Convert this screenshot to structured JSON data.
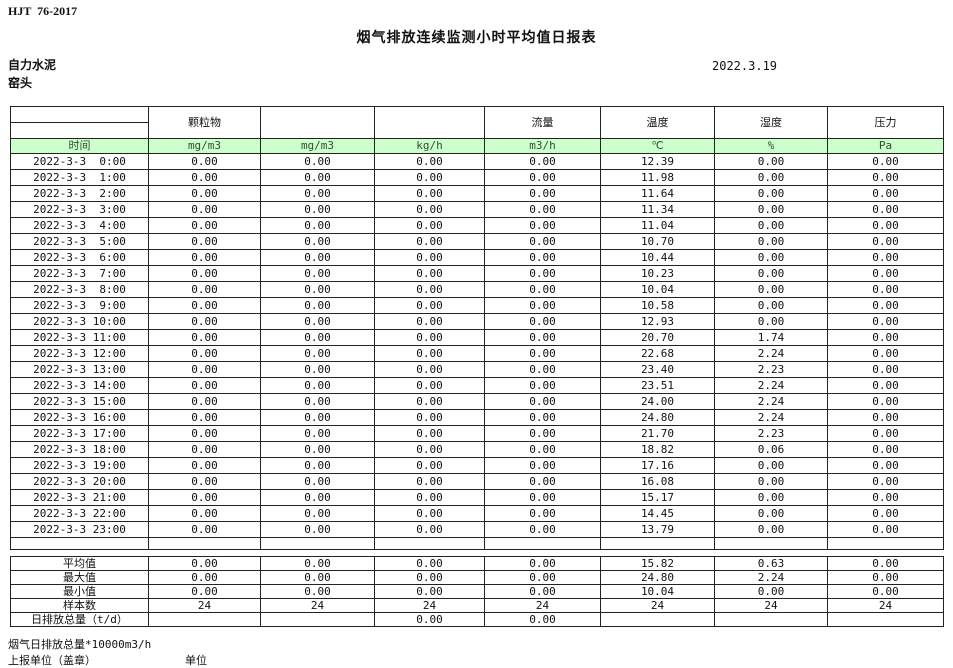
{
  "page": {
    "standard": "HJT  76-2017",
    "title": "烟气排放连续监测小时平均值日报表",
    "date": "2022.3.19",
    "company": "自力水泥",
    "station": "窑头"
  },
  "table": {
    "group_headers": [
      "",
      "颗粒物",
      "",
      "",
      "流量",
      "温度",
      "湿度",
      "压力"
    ],
    "unit_row": [
      "时间",
      "mg/m3",
      "mg/m3",
      "kg/h",
      "m3/h",
      "℃",
      "%",
      "Pa"
    ],
    "rows": [
      {
        "time": "2022-3-3  0:00",
        "values": [
          "0.00",
          "0.00",
          "0.00",
          "0.00",
          "12.39",
          "0.00",
          "0.00"
        ]
      },
      {
        "time": "2022-3-3  1:00",
        "values": [
          "0.00",
          "0.00",
          "0.00",
          "0.00",
          "11.98",
          "0.00",
          "0.00"
        ]
      },
      {
        "time": "2022-3-3  2:00",
        "values": [
          "0.00",
          "0.00",
          "0.00",
          "0.00",
          "11.64",
          "0.00",
          "0.00"
        ]
      },
      {
        "time": "2022-3-3  3:00",
        "values": [
          "0.00",
          "0.00",
          "0.00",
          "0.00",
          "11.34",
          "0.00",
          "0.00"
        ]
      },
      {
        "time": "2022-3-3  4:00",
        "values": [
          "0.00",
          "0.00",
          "0.00",
          "0.00",
          "11.04",
          "0.00",
          "0.00"
        ]
      },
      {
        "time": "2022-3-3  5:00",
        "values": [
          "0.00",
          "0.00",
          "0.00",
          "0.00",
          "10.70",
          "0.00",
          "0.00"
        ]
      },
      {
        "time": "2022-3-3  6:00",
        "values": [
          "0.00",
          "0.00",
          "0.00",
          "0.00",
          "10.44",
          "0.00",
          "0.00"
        ]
      },
      {
        "time": "2022-3-3  7:00",
        "values": [
          "0.00",
          "0.00",
          "0.00",
          "0.00",
          "10.23",
          "0.00",
          "0.00"
        ]
      },
      {
        "time": "2022-3-3  8:00",
        "values": [
          "0.00",
          "0.00",
          "0.00",
          "0.00",
          "10.04",
          "0.00",
          "0.00"
        ]
      },
      {
        "time": "2022-3-3  9:00",
        "values": [
          "0.00",
          "0.00",
          "0.00",
          "0.00",
          "10.58",
          "0.00",
          "0.00"
        ]
      },
      {
        "time": "2022-3-3 10:00",
        "values": [
          "0.00",
          "0.00",
          "0.00",
          "0.00",
          "12.93",
          "0.00",
          "0.00"
        ]
      },
      {
        "time": "2022-3-3 11:00",
        "values": [
          "0.00",
          "0.00",
          "0.00",
          "0.00",
          "20.70",
          "1.74",
          "0.00"
        ]
      },
      {
        "time": "2022-3-3 12:00",
        "values": [
          "0.00",
          "0.00",
          "0.00",
          "0.00",
          "22.68",
          "2.24",
          "0.00"
        ]
      },
      {
        "time": "2022-3-3 13:00",
        "values": [
          "0.00",
          "0.00",
          "0.00",
          "0.00",
          "23.40",
          "2.23",
          "0.00"
        ]
      },
      {
        "time": "2022-3-3 14:00",
        "values": [
          "0.00",
          "0.00",
          "0.00",
          "0.00",
          "23.51",
          "2.24",
          "0.00"
        ]
      },
      {
        "time": "2022-3-3 15:00",
        "values": [
          "0.00",
          "0.00",
          "0.00",
          "0.00",
          "24.00",
          "2.24",
          "0.00"
        ]
      },
      {
        "time": "2022-3-3 16:00",
        "values": [
          "0.00",
          "0.00",
          "0.00",
          "0.00",
          "24.80",
          "2.24",
          "0.00"
        ]
      },
      {
        "time": "2022-3-3 17:00",
        "values": [
          "0.00",
          "0.00",
          "0.00",
          "0.00",
          "21.70",
          "2.23",
          "0.00"
        ]
      },
      {
        "time": "2022-3-3 18:00",
        "values": [
          "0.00",
          "0.00",
          "0.00",
          "0.00",
          "18.82",
          "0.06",
          "0.00"
        ]
      },
      {
        "time": "2022-3-3 19:00",
        "values": [
          "0.00",
          "0.00",
          "0.00",
          "0.00",
          "17.16",
          "0.00",
          "0.00"
        ]
      },
      {
        "time": "2022-3-3 20:00",
        "values": [
          "0.00",
          "0.00",
          "0.00",
          "0.00",
          "16.08",
          "0.00",
          "0.00"
        ]
      },
      {
        "time": "2022-3-3 21:00",
        "values": [
          "0.00",
          "0.00",
          "0.00",
          "0.00",
          "15.17",
          "0.00",
          "0.00"
        ]
      },
      {
        "time": "2022-3-3 22:00",
        "values": [
          "0.00",
          "0.00",
          "0.00",
          "0.00",
          "14.45",
          "0.00",
          "0.00"
        ]
      },
      {
        "time": "2022-3-3 23:00",
        "values": [
          "0.00",
          "0.00",
          "0.00",
          "0.00",
          "13.79",
          "0.00",
          "0.00"
        ]
      }
    ],
    "summary": [
      {
        "label": "平均值",
        "values": [
          "0.00",
          "0.00",
          "0.00",
          "0.00",
          "15.82",
          "0.63",
          "0.00"
        ]
      },
      {
        "label": "最大值",
        "values": [
          "0.00",
          "0.00",
          "0.00",
          "0.00",
          "24.80",
          "2.24",
          "0.00"
        ]
      },
      {
        "label": "最小值",
        "values": [
          "0.00",
          "0.00",
          "0.00",
          "0.00",
          "10.04",
          "0.00",
          "0.00"
        ]
      },
      {
        "label": "样本数",
        "values": [
          "24",
          "24",
          "24",
          "24",
          "24",
          "24",
          "24"
        ]
      },
      {
        "label": "日排放总量（t/d）",
        "values": [
          "",
          "",
          "0.00",
          "0.00",
          "",
          "",
          ""
        ]
      }
    ]
  },
  "footer": {
    "note": "烟气日排放总量*10000m3/h",
    "report_unit_label": "上报单位（盖章）",
    "unit_label": "单位"
  },
  "colors": {
    "unit_row_bg": "#ccffcc",
    "border": "#222222"
  }
}
